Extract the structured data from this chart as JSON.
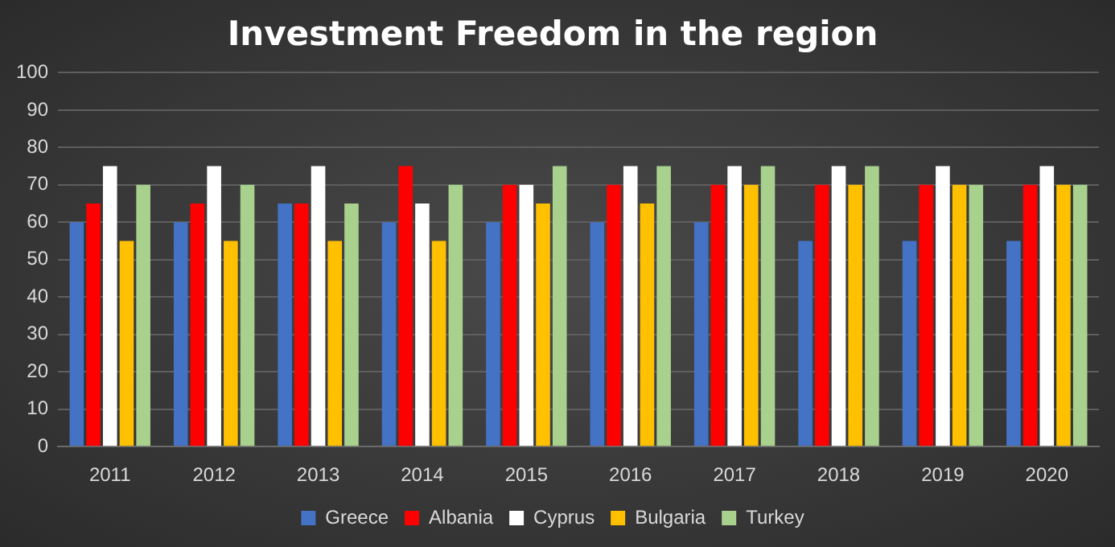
{
  "chart_data": {
    "type": "bar",
    "title": "Investment Freedom in the region",
    "categories": [
      "2011",
      "2012",
      "2013",
      "2014",
      "2015",
      "2016",
      "2017",
      "2018",
      "2019",
      "2020"
    ],
    "series": [
      {
        "name": "Greece",
        "color": "#4472c4",
        "values": [
          60,
          60,
          65,
          60,
          60,
          60,
          60,
          55,
          55,
          55
        ]
      },
      {
        "name": "Albania",
        "color": "#ff0000",
        "values": [
          65,
          65,
          65,
          75,
          70,
          70,
          70,
          70,
          70,
          70
        ]
      },
      {
        "name": "Cyprus",
        "color": "#ffffff",
        "values": [
          75,
          75,
          75,
          65,
          70,
          75,
          75,
          75,
          75,
          75
        ]
      },
      {
        "name": "Bulgaria",
        "color": "#ffc000",
        "values": [
          55,
          55,
          55,
          55,
          65,
          65,
          70,
          70,
          70,
          70
        ]
      },
      {
        "name": "Turkey",
        "color": "#a9d18e",
        "values": [
          70,
          70,
          65,
          70,
          75,
          75,
          75,
          75,
          70,
          70
        ]
      }
    ],
    "ylim": [
      0,
      100
    ],
    "yticks": [
      0,
      10,
      20,
      30,
      40,
      50,
      60,
      70,
      80,
      90,
      100
    ],
    "grid": "y",
    "legend": "bottom"
  }
}
